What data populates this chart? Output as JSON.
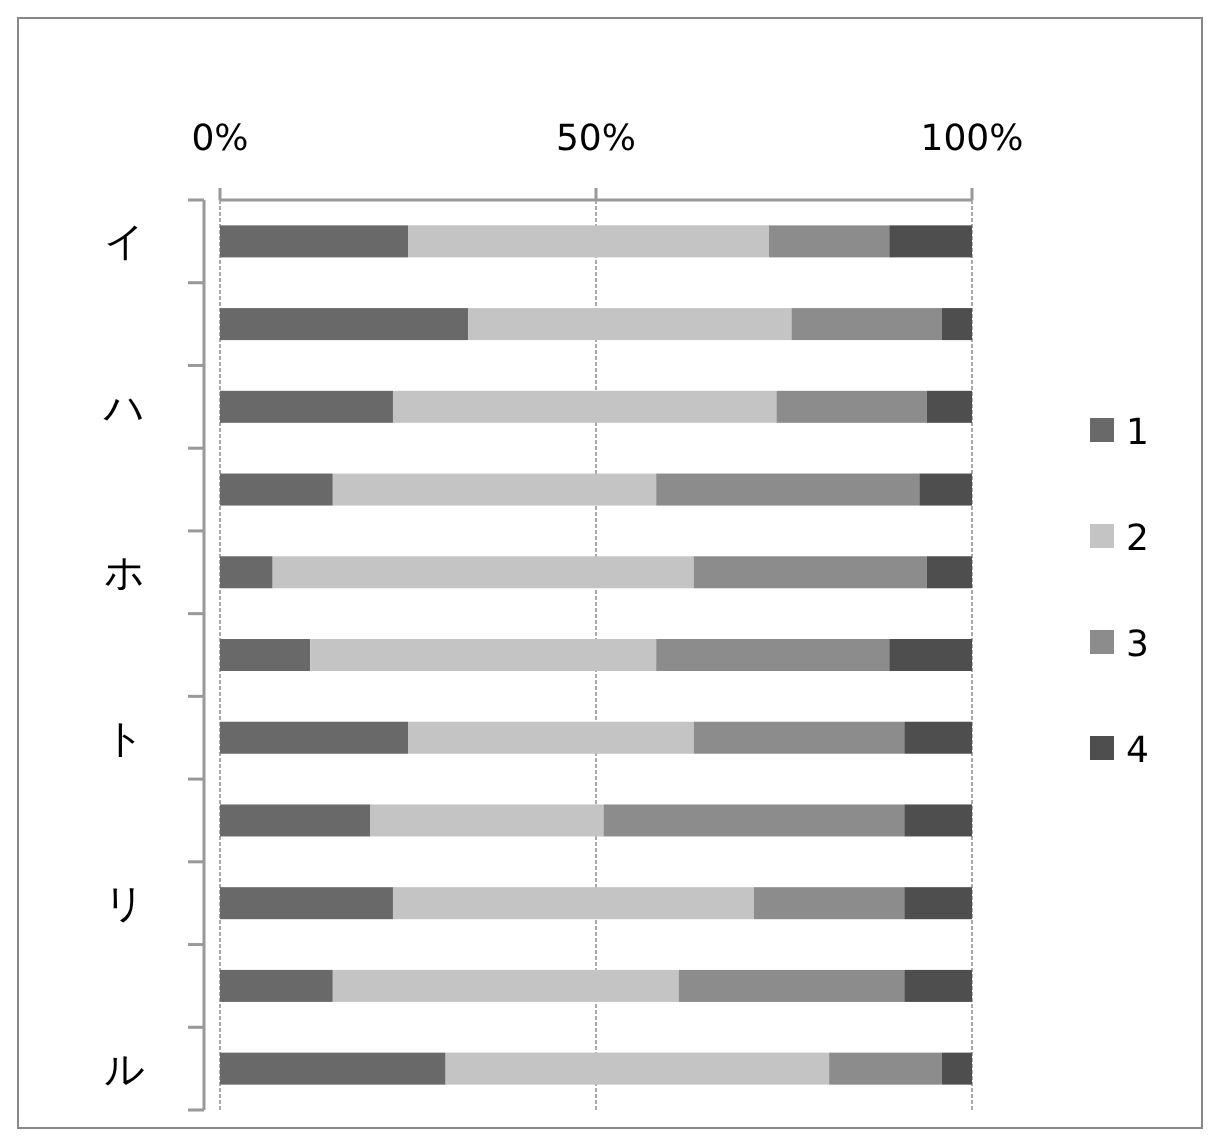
{
  "chart_data": {
    "type": "bar",
    "orientation": "horizontal",
    "stacked": true,
    "categories": [
      "イ",
      null,
      "ハ",
      null,
      "ホ",
      null,
      "ト",
      null,
      "リ",
      null,
      "ル"
    ],
    "series": [
      {
        "name": "1",
        "color": "#696969",
        "values": [
          25,
          33,
          23,
          15,
          7,
          12,
          25,
          20,
          23,
          15,
          30
        ]
      },
      {
        "name": "2",
        "color": "#c4c4c4",
        "values": [
          48,
          43,
          51,
          43,
          56,
          46,
          38,
          31,
          48,
          46,
          51
        ]
      },
      {
        "name": "3",
        "color": "#8c8c8c",
        "values": [
          16,
          20,
          20,
          35,
          31,
          31,
          28,
          40,
          20,
          30,
          15
        ]
      },
      {
        "name": "4",
        "color": "#4e4e4e",
        "values": [
          11,
          4,
          6,
          7,
          6,
          11,
          9,
          9,
          9,
          9,
          4
        ]
      }
    ],
    "xlim": [
      0,
      100
    ],
    "xticks": [
      {
        "value": 0,
        "label": "0%"
      },
      {
        "value": 50,
        "label": "50%"
      },
      {
        "value": 100,
        "label": "100%"
      }
    ],
    "grid": "x",
    "legend": "right"
  }
}
